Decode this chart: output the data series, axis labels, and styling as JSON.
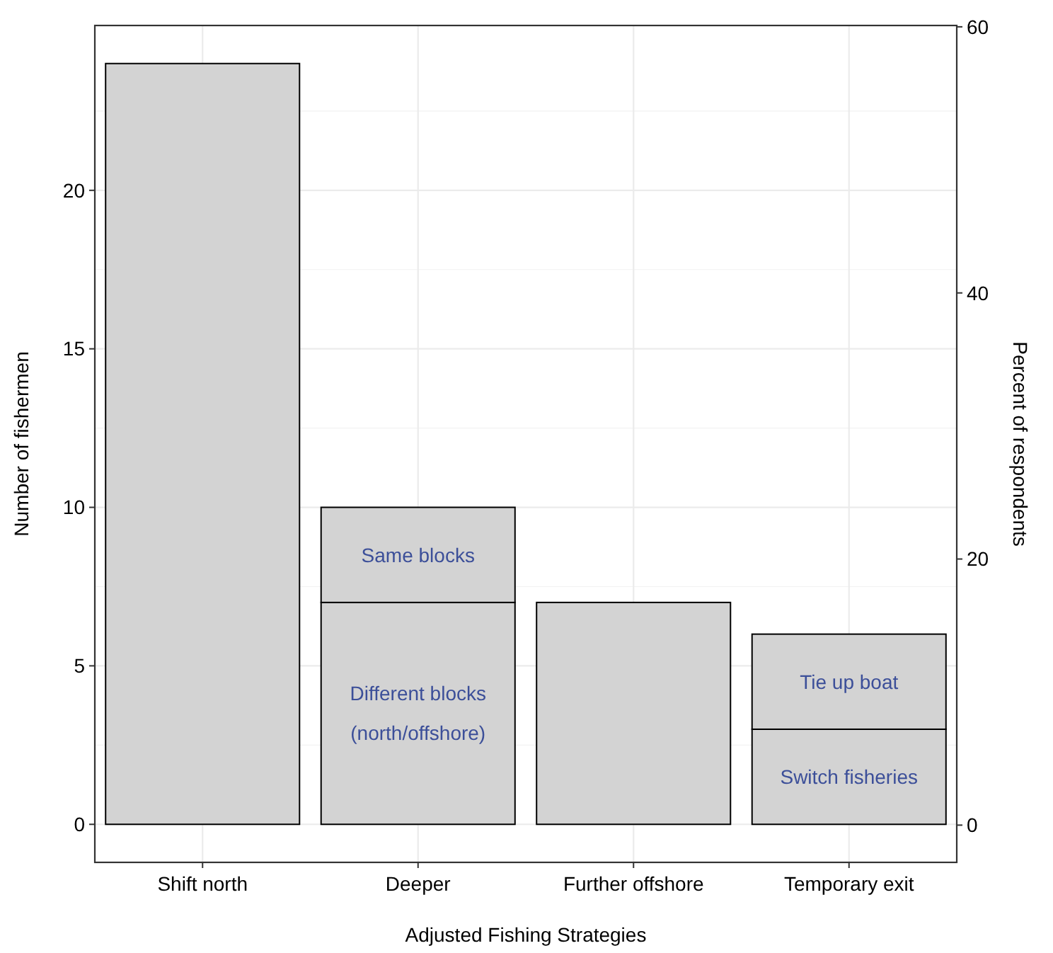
{
  "chart_data": {
    "type": "bar",
    "stacked": true,
    "xlabel": "Adjusted Fishing Strategies",
    "ylabel": "Number of fishermen",
    "y2label": "Percent of respondents",
    "categories": [
      "Shift north",
      "Deeper",
      "Further offshore",
      "Temporary exit"
    ],
    "series": [
      {
        "color": "#d3d3d3",
        "values": [
          24,
          7,
          7,
          3
        ],
        "value_labels": [
          null,
          "Different blocks\n(north/offshore)",
          null,
          "Switch fisheries"
        ]
      },
      {
        "color": "#d3d3d3",
        "values": [
          null,
          3,
          null,
          3
        ],
        "value_labels": [
          null,
          "Same blocks",
          null,
          "Tie up boat"
        ]
      }
    ],
    "ylim": [
      -1.2,
      25.2
    ],
    "yticks": [
      0,
      5,
      10,
      15,
      20
    ],
    "y2lim": [
      -2.8,
      60.1
    ],
    "y2ticks": [
      0,
      20,
      40,
      60
    ],
    "grid": true
  }
}
